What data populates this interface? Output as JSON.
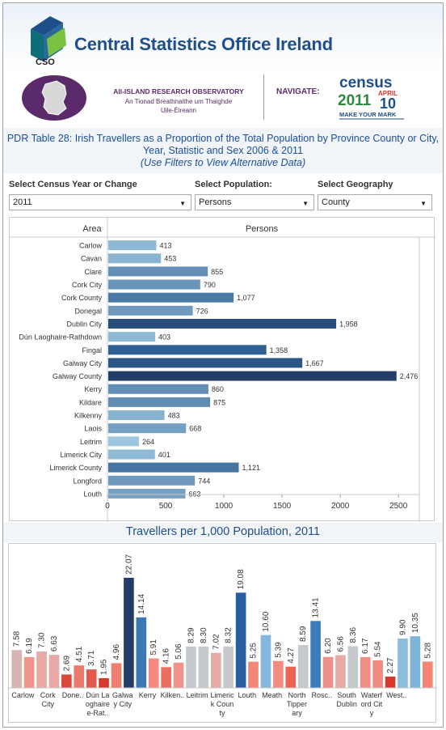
{
  "header": {
    "site_title": "Central Statistics Office Ireland",
    "cso_logo_text": "CSO"
  },
  "banner": {
    "airo_line1": "All-ISLAND RESEARCH OBSERVATORY",
    "airo_line2": "An Tionad Breathnaithe um Thaighde",
    "airo_line3": "Uile-Éireann",
    "navigate_label": "NAVIGATE:",
    "census_word": "census",
    "census_year": "2011",
    "census_month": "APRIL",
    "census_day": "10",
    "census_tagline": "MAKE YOUR MARK"
  },
  "title": {
    "line1": "PDR Table 28: Irish Travellers as a Proportion of the Total Population by Province County or City,",
    "line2": "Year, Statistic and Sex 2006 & 2011",
    "line3": "(Use Filters to View Alternative Data)"
  },
  "filters": {
    "census_year_label": "Select Census Year or Change",
    "census_year_value": "2011",
    "population_label": "Select Population:",
    "population_value": "Persons",
    "geography_label": "Select Geography",
    "geography_value": "County"
  },
  "chart_data": [
    {
      "type": "bar",
      "orientation": "horizontal",
      "header_row_label": "Area",
      "header_value_label": "Persons",
      "categories": [
        "Carlow",
        "Cavan",
        "Clare",
        "Cork City",
        "Cork County",
        "Donegal",
        "Dublin City",
        "Dún Laoghaire-Rathdown",
        "Fingal",
        "Galway City",
        "Galway County",
        "Kerry",
        "Kildare",
        "Kilkenny",
        "Laois",
        "Leitrim",
        "Limerick City",
        "Limerick County",
        "Longford",
        "Louth"
      ],
      "values": [
        413,
        453,
        855,
        790,
        1077,
        726,
        1958,
        403,
        1358,
        1667,
        2476,
        860,
        875,
        483,
        668,
        264,
        401,
        1121,
        744,
        663
      ],
      "value_labels": [
        "413",
        "453",
        "855",
        "790",
        "1,077",
        "726",
        "1,958",
        "403",
        "1,358",
        "1,667",
        "2,476",
        "860",
        "875",
        "483",
        "668",
        "264",
        "401",
        "1,121",
        "744",
        "663"
      ],
      "xlim": [
        0,
        2700
      ],
      "xticks": [
        0,
        500,
        1000,
        1500,
        2000,
        2500
      ],
      "color_scale": [
        "#9ec6df",
        "#2f5f91",
        "#233d66"
      ]
    },
    {
      "type": "bar",
      "orientation": "vertical",
      "title": "Travellers per 1,000 Population, 2011",
      "values": [
        7.58,
        6.19,
        7.3,
        6.63,
        2.69,
        4.51,
        3.71,
        1.95,
        4.96,
        22.07,
        14.14,
        5.91,
        4.16,
        5.06,
        8.29,
        8.3,
        7.02,
        8.32,
        19.08,
        5.25,
        10.6,
        5.39,
        4.27,
        8.59,
        13.41,
        6.2,
        6.56,
        8.36,
        6.17,
        5.54,
        2.27,
        9.9,
        10.35,
        5.28
      ],
      "value_labels": [
        "7.58",
        "6.19",
        "7.30",
        "6.63",
        "2.69",
        "4.51",
        "3.71",
        "1.95",
        "4.96",
        "22.07",
        "14.14",
        "5.91",
        "4.16",
        "5.06",
        "8.29",
        "8.30",
        "7.02",
        "8.32",
        "19.08",
        "5.25",
        "10.60",
        "5.39",
        "4.27",
        "8.59",
        "13.41",
        "6.20",
        "6.56",
        "8.36",
        "6.17",
        "5.54",
        "2.27",
        "9.90",
        "10.35",
        "5.28"
      ],
      "colors": [
        "#d8b4b0",
        "#f09488",
        "#e8a8a4",
        "#e8a8a4",
        "#d84a3c",
        "#ec7a6c",
        "#e25a4c",
        "#d4392c",
        "#f07e70",
        "#233d66",
        "#3a78b6",
        "#f28c80",
        "#ec6e60",
        "#f0948a",
        "#c6cacc",
        "#c6cacc",
        "#e4aaa6",
        "#c6cacc",
        "#2a5da0",
        "#f48676",
        "#84b8dc",
        "#f28c80",
        "#ea6454",
        "#c6cacc",
        "#3c7cba",
        "#ee9088",
        "#e8a8a4",
        "#c6cacc",
        "#f08e84",
        "#f28c80",
        "#d43a2c",
        "#8ebcdc",
        "#7eb4da",
        "#f48676"
      ],
      "x_labels": [
        "Carlow",
        "Cork\nCity",
        "Done..",
        "Dún La\noghaire\ne-Rat..",
        "Galwa\ny City",
        "Kerry",
        "Kilken..",
        "Leitrim",
        "Limeric\nk Coun\nty",
        "Louth",
        "Meath",
        "North\nTipper\nary",
        "Rosc..",
        "South\nDublin",
        "Waterf\nord Cit\ny",
        "West.."
      ],
      "ylim": [
        0,
        24
      ]
    }
  ]
}
